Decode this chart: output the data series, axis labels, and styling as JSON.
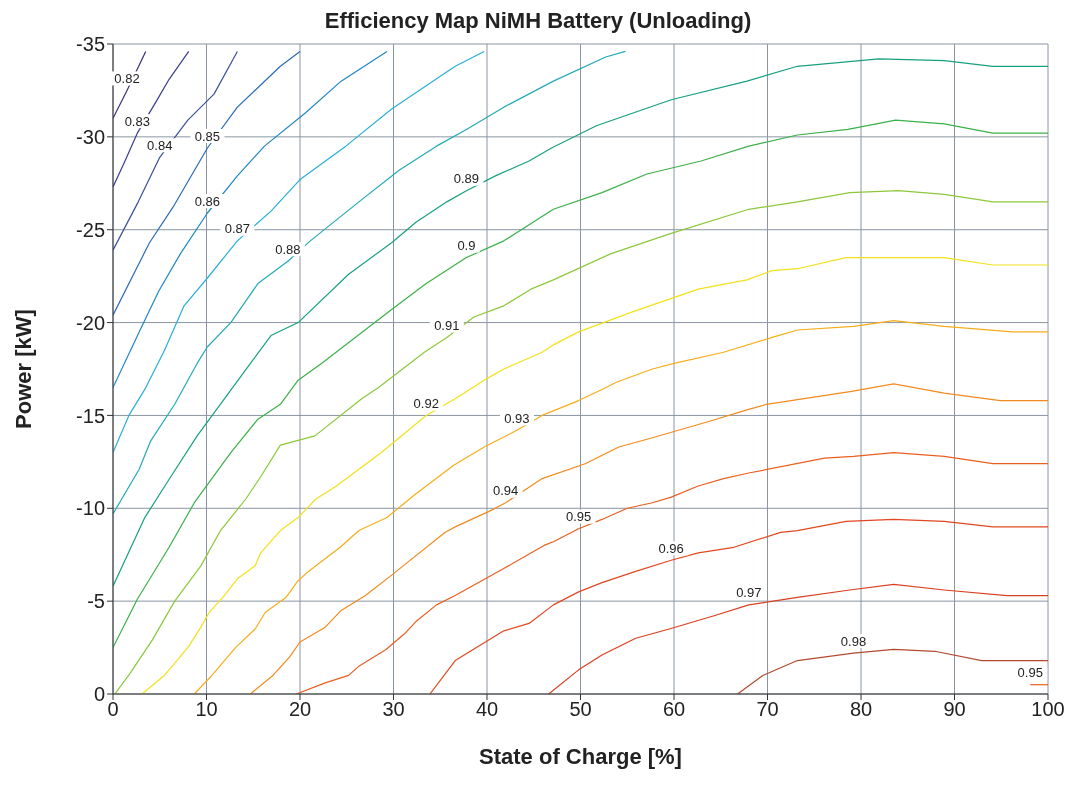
{
  "chart_data": {
    "type": "line",
    "title": "Efficiency Map NiMH Battery (Unloading)",
    "xlabel": "State of Charge [%]",
    "ylabel": "Power [kW]",
    "xlim": [
      0,
      100
    ],
    "xticks": [
      0,
      10,
      20,
      30,
      40,
      50,
      60,
      70,
      80,
      90,
      100
    ],
    "ylim": [
      0,
      -35
    ],
    "yticks": [
      0,
      -5,
      -10,
      -15,
      -20,
      -25,
      -30,
      -35
    ],
    "grid": true,
    "legend": false,
    "marker": "none",
    "series": [
      {
        "name": "0.82",
        "color": "#3b2b7d",
        "x": [
          0,
          1.5,
          3.5
        ],
        "values": [
          -31,
          -32.5,
          -34.6
        ]
      },
      {
        "name": "0.83",
        "color": "#3a3c8e",
        "x": [
          0,
          1.2,
          2.6,
          4.5,
          6,
          8.1
        ],
        "values": [
          -27.3,
          -28.6,
          -30.2,
          -31.8,
          -33.1,
          -34.6
        ]
      },
      {
        "name": "0.84",
        "color": "#3a4f9d",
        "x": [
          0,
          2.7,
          5,
          8,
          10.8,
          13.3
        ],
        "values": [
          -23.9,
          -26.5,
          -28.9,
          -30.9,
          -32.3,
          -34.6
        ]
      },
      {
        "name": "0.85",
        "color": "#2a6bb5",
        "x": [
          0,
          3.9,
          6.4,
          10.1,
          13.3,
          17.9,
          20
        ],
        "values": [
          -20.4,
          -24.3,
          -26.2,
          -29.4,
          -31.6,
          -33.8,
          -34.6
        ]
      },
      {
        "name": "0.86",
        "color": "#1f86c5",
        "x": [
          0,
          2.9,
          4.9,
          7.2,
          10.1,
          13.3,
          16.2,
          20.6,
          24.4,
          29.3
        ],
        "values": [
          -16.5,
          -19.6,
          -21.7,
          -23.7,
          -25.9,
          -27.9,
          -29.5,
          -31.3,
          -33,
          -34.6
        ]
      },
      {
        "name": "0.87",
        "color": "#2aaed8",
        "x": [
          0,
          1.7,
          3.4,
          5.5,
          7.6,
          10.1,
          13.3,
          16.9,
          20,
          24.9,
          29.8,
          36.6,
          39.7
        ],
        "values": [
          -13,
          -15,
          -16.4,
          -18.5,
          -20.9,
          -22.4,
          -24.4,
          -26,
          -27.7,
          -29.5,
          -31.5,
          -33.8,
          -34.6
        ]
      },
      {
        "name": "0.88",
        "color": "#22a9b5",
        "x": [
          0,
          2.8,
          4,
          6.6,
          9,
          10.1,
          12.6,
          15.5,
          18.7,
          21.1,
          26.3,
          30.6,
          34.6,
          37.8,
          41.8,
          47.1,
          52.7,
          54.8
        ],
        "values": [
          -9.7,
          -12.1,
          -13.6,
          -15.6,
          -17.8,
          -18.7,
          -20,
          -22.1,
          -23.3,
          -24.4,
          -26.5,
          -28.2,
          -29.5,
          -30.4,
          -31.6,
          -33,
          -34.3,
          -34.6
        ]
      },
      {
        "name": "0.89",
        "color": "#17a080",
        "x": [
          0,
          3.4,
          5.8,
          9,
          14.7,
          16.9,
          19.8,
          25.2,
          29.8,
          32.4,
          35.7,
          37.8,
          40.9,
          44.5,
          46.9,
          51.7,
          59.7,
          67.8,
          73.2,
          81.9,
          88.9,
          94.1,
          100
        ],
        "values": [
          -5.8,
          -9.5,
          -11.4,
          -13.9,
          -17.8,
          -19.3,
          -20,
          -22.6,
          -24.3,
          -25.4,
          -26.5,
          -27.1,
          -27.9,
          -28.7,
          -29.4,
          -30.6,
          -32,
          -33,
          -33.8,
          -34.2,
          -34.1,
          -33.8,
          -33.8
        ]
      },
      {
        "name": "0.9",
        "color": "#3cb04a",
        "x": [
          0,
          2.6,
          6,
          8.7,
          12.6,
          15.5,
          17.9,
          19.8,
          22.3,
          29.8,
          33.5,
          37.8,
          41.8,
          47.1,
          52.3,
          57.1,
          62.9,
          68,
          73.2,
          78.6,
          83.7,
          88.9,
          94.1,
          100
        ],
        "values": [
          -2.5,
          -5.1,
          -7.9,
          -10.3,
          -13,
          -14.8,
          -15.6,
          -16.9,
          -17.8,
          -20.7,
          -22.1,
          -23.5,
          -24.4,
          -26.1,
          -27,
          -28,
          -28.7,
          -29.5,
          -30.1,
          -30.4,
          -30.9,
          -30.7,
          -30.2,
          -30.2
        ]
      },
      {
        "name": "0.91",
        "color": "#8cc83a",
        "x": [
          0.2,
          1.8,
          4.2,
          6.6,
          9.4,
          11.5,
          14.2,
          15.8,
          17.9,
          21.6,
          26.6,
          28.4,
          33.3,
          35.7,
          38.6,
          41.8,
          44.7,
          47.1,
          53.2,
          59.7,
          68,
          73.2,
          78.8,
          84,
          88.9,
          94.1,
          100
        ],
        "values": [
          0,
          -1.1,
          -2.9,
          -5,
          -6.9,
          -8.8,
          -10.5,
          -11.7,
          -13.4,
          -13.9,
          -15.9,
          -16.5,
          -18.4,
          -19.2,
          -20.3,
          -20.9,
          -21.8,
          -22.3,
          -23.7,
          -24.8,
          -26.1,
          -26.5,
          -27,
          -27.1,
          -26.9,
          -26.5,
          -26.5
        ]
      },
      {
        "name": "0.92",
        "color": "#f2e11a",
        "x": [
          3.1,
          5.5,
          8,
          9.4,
          10.3,
          11.9,
          13.3,
          15.2,
          15.8,
          17.9,
          19.8,
          21.7,
          23.9,
          28.7,
          33.5,
          36.6,
          39.7,
          41.8,
          45.9,
          47.1,
          49.8,
          55.7,
          62.6,
          67.8,
          70.5,
          73.2,
          78.4,
          88.9,
          94.1,
          100
        ],
        "values": [
          0,
          -1,
          -2.5,
          -3.6,
          -4.4,
          -5.3,
          -6.2,
          -6.9,
          -7.6,
          -8.8,
          -9.5,
          -10.5,
          -11.2,
          -13,
          -15,
          -15.9,
          -16.9,
          -17.5,
          -18.4,
          -18.8,
          -19.5,
          -20.6,
          -21.8,
          -22.3,
          -22.8,
          -22.9,
          -23.5,
          -23.5,
          -23.1,
          -23.1
        ]
      },
      {
        "name": "0.93",
        "color": "#f6ad1a",
        "x": [
          8.7,
          10.4,
          13.1,
          15.2,
          16.3,
          18.5,
          19.8,
          20.9,
          24.3,
          26.3,
          29.3,
          32.2,
          36.4,
          39.7,
          43.2,
          45.9,
          49.8,
          52.3,
          53.9,
          57.7,
          60,
          65.3,
          70.5,
          73.2,
          79.2,
          83.5,
          88.9,
          96.2,
          100
        ],
        "values": [
          0,
          -0.9,
          -2.5,
          -3.5,
          -4.4,
          -5.2,
          -6.1,
          -6.6,
          -7.9,
          -8.8,
          -9.5,
          -10.7,
          -12.3,
          -13.3,
          -14.2,
          -15,
          -15.8,
          -16.4,
          -16.8,
          -17.5,
          -17.8,
          -18.4,
          -19.2,
          -19.6,
          -19.8,
          -20.1,
          -19.8,
          -19.5,
          -19.5
        ]
      },
      {
        "name": "0.94",
        "color": "#f28a1e",
        "x": [
          14.7,
          17.1,
          18.9,
          20,
          22.7,
          24.4,
          27,
          29.8,
          35.5,
          36.6,
          40.5,
          42,
          45.9,
          50.5,
          54.1,
          57.7,
          63.9,
          67.8,
          69.9,
          79,
          83.5,
          88.9,
          94.9,
          100
        ],
        "values": [
          0,
          -1,
          -2,
          -2.8,
          -3.6,
          -4.5,
          -5.3,
          -6.4,
          -8.7,
          -9,
          -9.9,
          -10.3,
          -11.6,
          -12.4,
          -13.3,
          -13.8,
          -14.7,
          -15.3,
          -15.6,
          -16.3,
          -16.7,
          -16.2,
          -15.8,
          -15.8
        ]
      },
      {
        "name": "0.95",
        "color": "#e95f20",
        "x": [
          19.6,
          22.7,
          25.2,
          26.3,
          29.2,
          31.3,
          32.4,
          34.6,
          36.6,
          41.6,
          46.1,
          47.1,
          49.8,
          52.3,
          55,
          57.7,
          59.7,
          62.6,
          65.3,
          68,
          76.1,
          79.2,
          83.5,
          88.9,
          94.1,
          100
        ],
        "values": [
          0,
          -0.6,
          -1,
          -1.5,
          -2.4,
          -3.3,
          -3.9,
          -4.8,
          -5.3,
          -6.7,
          -8,
          -8.2,
          -8.9,
          -9.4,
          -10,
          -10.3,
          -10.6,
          -11.2,
          -11.6,
          -11.9,
          -12.7,
          -12.8,
          -13,
          -12.8,
          -12.4,
          -12.4
        ]
      },
      {
        "name": "0.96",
        "color": "#e0481f",
        "x": [
          33.9,
          36.6,
          41.8,
          44.5,
          47.1,
          49.8,
          52.3,
          55.9,
          59.7,
          62.6,
          66.4,
          71.4,
          73.2,
          78.4,
          83.5,
          88.9,
          94.1,
          100
        ],
        "values": [
          0,
          -1.8,
          -3.4,
          -3.8,
          -4.8,
          -5.5,
          -6,
          -6.6,
          -7.2,
          -7.6,
          -7.9,
          -8.7,
          -8.8,
          -9.3,
          -9.4,
          -9.3,
          -9,
          -9
        ]
      },
      {
        "name": "0.97",
        "color": "#d94020",
        "x": [
          46.6,
          49.8,
          52.3,
          55.9,
          59.5,
          64.2,
          68,
          73.2,
          78.8,
          83.5,
          88.9,
          95.6,
          100
        ],
        "values": [
          0,
          -1.3,
          -2.1,
          -3,
          -3.5,
          -4.2,
          -4.8,
          -5.2,
          -5.6,
          -5.9,
          -5.6,
          -5.3,
          -5.3
        ]
      },
      {
        "name": "0.98",
        "color": "#b44a30",
        "x": [
          66.8,
          69.5,
          73.2,
          79.2,
          83.5,
          87.9,
          92.9,
          100
        ],
        "values": [
          0,
          -1,
          -1.8,
          -2.2,
          -2.4,
          -2.3,
          -1.8,
          -1.8
        ]
      },
      {
        "name": "0.95",
        "color": "#e95f20",
        "x": [
          98.1,
          100
        ],
        "values": [
          -0.5,
          -0.5
        ]
      }
    ]
  }
}
